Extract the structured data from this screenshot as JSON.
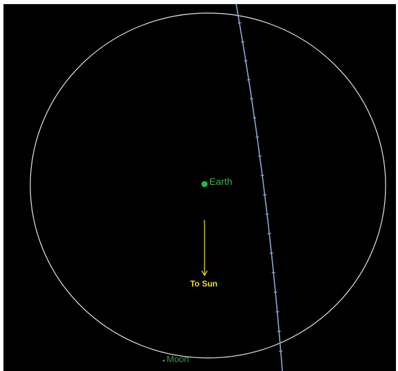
{
  "labels": {
    "earth": "Earth",
    "moon": "Moon",
    "sun_direction": "To Sun"
  },
  "colors": {
    "background": "#000000",
    "orbit": "#e8e8e8",
    "earth": "#2db34a",
    "earth_label": "#3fae52",
    "moon_label": "#3a9a48",
    "sun_arrow": "#d8c23a",
    "sun_label": "#f2dc2e",
    "trajectory": "#8fa8d8"
  },
  "icons": {
    "earth": "green-dot",
    "sun_direction": "down-arrow"
  }
}
